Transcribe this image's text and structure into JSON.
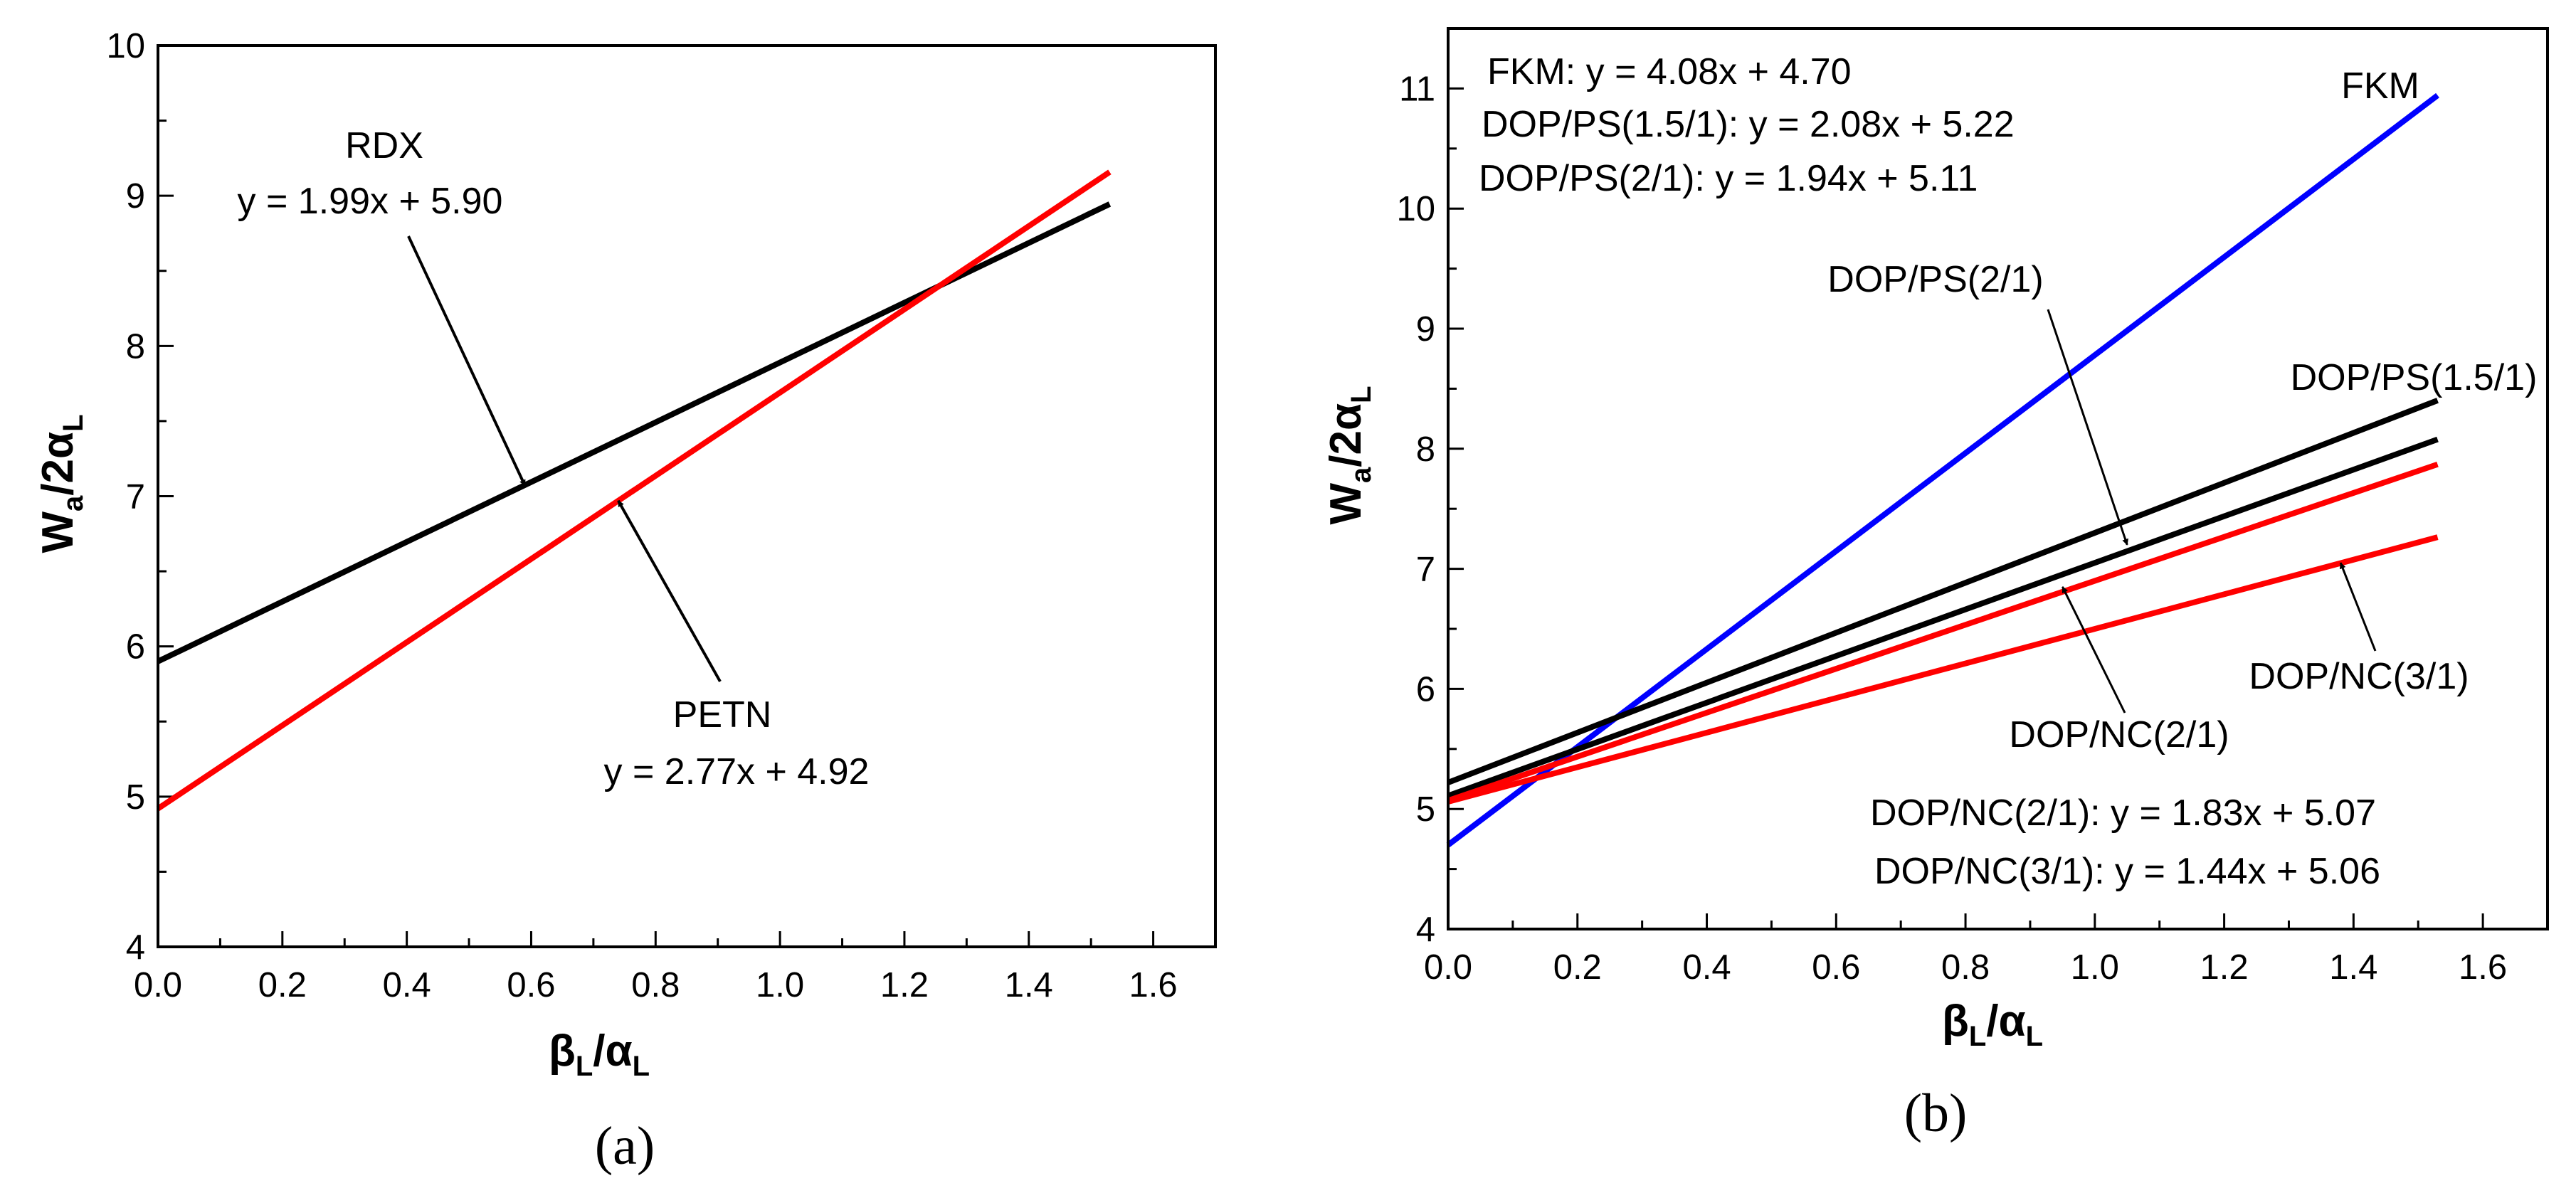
{
  "chart_data": [
    {
      "type": "line",
      "panel": "(a)",
      "xlabel": {
        "main1": "β",
        "sub1": "L",
        "main2": "/α",
        "sub2": "L"
      },
      "ylabel": {
        "main1": "W",
        "sub1": "a",
        "main2": "/2α",
        "sub2": "L"
      },
      "xlim": [
        0.0,
        1.7
      ],
      "ylim": [
        4,
        10
      ],
      "x_ticks": [
        "0.0",
        "0.2",
        "0.4",
        "0.6",
        "0.8",
        "1.0",
        "1.2",
        "1.4",
        "1.6"
      ],
      "y_ticks": [
        "4",
        "5",
        "6",
        "7",
        "8",
        "9",
        "10"
      ],
      "series": [
        {
          "name": "RDX",
          "slope": 1.99,
          "intercept": 5.9,
          "x": [
            0.0,
            1.53
          ],
          "color": "#000000"
        },
        {
          "name": "PETN",
          "slope": 2.77,
          "intercept": 4.92,
          "x": [
            0.0,
            1.53
          ],
          "color": "#ff0000"
        }
      ],
      "annotations": [
        {
          "lines": [
            "RDX",
            "y = 1.99x + 5.90"
          ],
          "arrow_to": [
            0.59,
            7.07
          ]
        },
        {
          "lines": [
            "PETN",
            "y = 2.77x + 4.92"
          ],
          "arrow_to": [
            0.74,
            6.97
          ]
        }
      ]
    },
    {
      "type": "line",
      "panel": "(b)",
      "xlabel": {
        "main1": "β",
        "sub1": "L",
        "main2": "/α",
        "sub2": "L"
      },
      "ylabel": {
        "main1": "W",
        "sub1": "a",
        "main2": "/2α",
        "sub2": "L"
      },
      "xlim": [
        0.0,
        1.7
      ],
      "ylim": [
        4,
        11.5
      ],
      "x_ticks": [
        "0.0",
        "0.2",
        "0.4",
        "0.6",
        "0.8",
        "1.0",
        "1.2",
        "1.4",
        "1.6"
      ],
      "y_ticks": [
        "4",
        "5",
        "6",
        "7",
        "8",
        "9",
        "10",
        "11"
      ],
      "series": [
        {
          "name": "FKM",
          "slope": 4.08,
          "intercept": 4.7,
          "x": [
            0.0,
            1.53
          ],
          "color": "#0000ff"
        },
        {
          "name": "DOP/PS(1.5/1)",
          "slope": 2.08,
          "intercept": 5.22,
          "x": [
            0.0,
            1.53
          ],
          "color": "#000000"
        },
        {
          "name": "DOP/PS(2/1)",
          "slope": 1.94,
          "intercept": 5.11,
          "x": [
            0.0,
            1.53
          ],
          "color": "#000000"
        },
        {
          "name": "DOP/NC(2/1)",
          "slope": 1.83,
          "intercept": 5.07,
          "x": [
            0.0,
            1.53
          ],
          "color": "#ff0000"
        },
        {
          "name": "DOP/NC(3/1)",
          "slope": 1.44,
          "intercept": 5.06,
          "x": [
            0.0,
            1.53
          ],
          "color": "#ff0000"
        }
      ],
      "equations_top": [
        "FKM: y = 4.08x + 4.70",
        "DOP/PS(1.5/1): y = 2.08x + 5.22",
        "DOP/PS(2/1): y = 1.94x + 5.11"
      ],
      "equations_bottom": [
        "DOP/NC(2/1): y = 1.83x + 5.07",
        "DOP/NC(3/1): y = 1.44x + 5.06"
      ],
      "line_labels": [
        "FKM",
        "DOP/PS(2/1)",
        "DOP/PS(1.5/1)",
        "DOP/NC(3/1)",
        "DOP/NC(2/1)"
      ],
      "arrows": [
        {
          "label": "DOP/PS(2/1)",
          "to": [
            1.05,
            7.2
          ]
        },
        {
          "label": "DOP/NC(2/1)",
          "to": [
            0.95,
            6.85
          ]
        },
        {
          "label": "DOP/NC(3/1)",
          "to": [
            1.38,
            7.05
          ]
        }
      ]
    }
  ]
}
